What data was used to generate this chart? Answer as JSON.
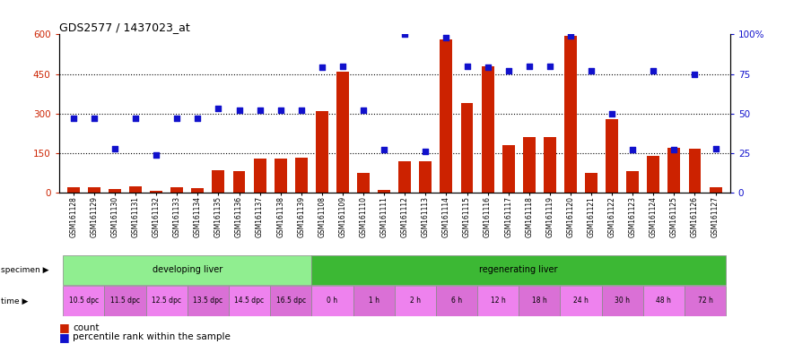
{
  "title": "GDS2577 / 1437023_at",
  "samples": [
    "GSM161128",
    "GSM161129",
    "GSM161130",
    "GSM161131",
    "GSM161132",
    "GSM161133",
    "GSM161134",
    "GSM161135",
    "GSM161136",
    "GSM161137",
    "GSM161138",
    "GSM161139",
    "GSM161108",
    "GSM161109",
    "GSM161110",
    "GSM161111",
    "GSM161112",
    "GSM161113",
    "GSM161114",
    "GSM161115",
    "GSM161116",
    "GSM161117",
    "GSM161118",
    "GSM161119",
    "GSM161120",
    "GSM161121",
    "GSM161122",
    "GSM161123",
    "GSM161124",
    "GSM161125",
    "GSM161126",
    "GSM161127"
  ],
  "counts": [
    20,
    20,
    15,
    25,
    8,
    20,
    18,
    85,
    82,
    130,
    128,
    132,
    310,
    460,
    75,
    10,
    120,
    120,
    580,
    340,
    480,
    180,
    210,
    210,
    595,
    75,
    280,
    80,
    140,
    170,
    165,
    20
  ],
  "percentile_ranks": [
    47,
    47,
    28,
    47,
    24,
    47,
    47,
    53,
    52,
    52,
    52,
    52,
    79,
    80,
    52,
    27,
    100,
    26,
    98,
    80,
    79,
    77,
    80,
    80,
    99,
    77,
    50,
    27,
    77,
    27,
    75,
    28
  ],
  "specimen_groups": [
    {
      "label": "developing liver",
      "start": 0,
      "end": 12,
      "color": "#90EE90"
    },
    {
      "label": "regenerating liver",
      "start": 12,
      "end": 32,
      "color": "#3CB834"
    }
  ],
  "time_groups": [
    {
      "label": "10.5 dpc",
      "start": 0,
      "end": 2,
      "color": "#EE82EE"
    },
    {
      "label": "11.5 dpc",
      "start": 2,
      "end": 4,
      "color": "#DA70D6"
    },
    {
      "label": "12.5 dpc",
      "start": 4,
      "end": 6,
      "color": "#EE82EE"
    },
    {
      "label": "13.5 dpc",
      "start": 6,
      "end": 8,
      "color": "#DA70D6"
    },
    {
      "label": "14.5 dpc",
      "start": 8,
      "end": 10,
      "color": "#EE82EE"
    },
    {
      "label": "16.5 dpc",
      "start": 10,
      "end": 12,
      "color": "#DA70D6"
    },
    {
      "label": "0 h",
      "start": 12,
      "end": 14,
      "color": "#EE82EE"
    },
    {
      "label": "1 h",
      "start": 14,
      "end": 16,
      "color": "#DA70D6"
    },
    {
      "label": "2 h",
      "start": 16,
      "end": 18,
      "color": "#EE82EE"
    },
    {
      "label": "6 h",
      "start": 18,
      "end": 20,
      "color": "#DA70D6"
    },
    {
      "label": "12 h",
      "start": 20,
      "end": 22,
      "color": "#EE82EE"
    },
    {
      "label": "18 h",
      "start": 22,
      "end": 24,
      "color": "#DA70D6"
    },
    {
      "label": "24 h",
      "start": 24,
      "end": 26,
      "color": "#EE82EE"
    },
    {
      "label": "30 h",
      "start": 26,
      "end": 28,
      "color": "#DA70D6"
    },
    {
      "label": "48 h",
      "start": 28,
      "end": 30,
      "color": "#EE82EE"
    },
    {
      "label": "72 h",
      "start": 30,
      "end": 32,
      "color": "#DA70D6"
    }
  ],
  "bar_color": "#CC2200",
  "dot_color": "#1111CC",
  "ylim_left": [
    0,
    600
  ],
  "ylim_right": [
    0,
    100
  ],
  "yticks_left": [
    0,
    150,
    300,
    450,
    600
  ],
  "yticks_right": [
    0,
    25,
    50,
    75,
    100
  ],
  "plot_bg": "#FFFFFF",
  "label_specimen": "specimen",
  "label_time": "time",
  "label_count": "count",
  "label_percentile": "percentile rank within the sample"
}
